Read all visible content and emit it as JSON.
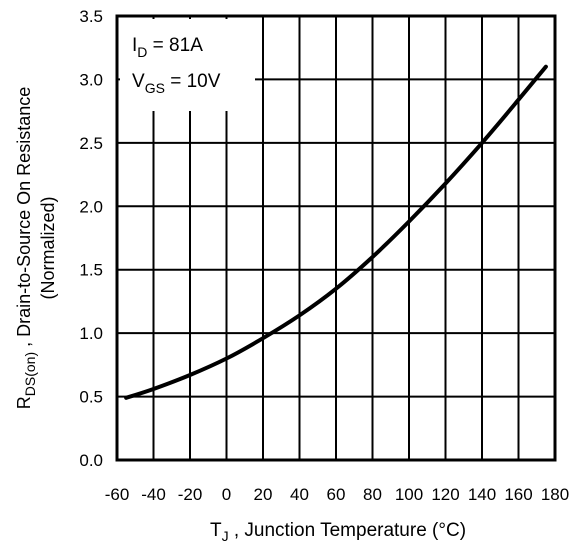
{
  "chart_data": {
    "type": "line",
    "title": "",
    "xlabel": "T",
    "xlabel_sub": "J",
    "xlabel_rest": " , Junction Temperature (°C)",
    "ylabel_main": "R",
    "ylabel_sub": "DS(on)",
    "ylabel_rest": " , Drain-to-Source On Resistance",
    "ylabel_line2": "(Normalized)",
    "xlim": [
      -60,
      180
    ],
    "ylim": [
      0.0,
      3.5
    ],
    "xticks": [
      "-60",
      "-40",
      "-20",
      "0",
      "20",
      "40",
      "60",
      "80",
      "100",
      "120",
      "140",
      "160",
      "180"
    ],
    "yticks": [
      "0.0",
      "0.5",
      "1.0",
      "1.5",
      "2.0",
      "2.5",
      "3.0",
      "3.5"
    ],
    "grid": true,
    "annotations": [
      {
        "main": "I",
        "sub": "D",
        "rest": " = 81A"
      },
      {
        "main": "V",
        "sub": "GS",
        "rest": " = 10V"
      }
    ],
    "series": [
      {
        "x": [
          -55,
          -40,
          -20,
          0,
          20,
          40,
          60,
          80,
          100,
          120,
          140,
          160,
          175
        ],
        "y": [
          0.49,
          0.56,
          0.67,
          0.8,
          0.96,
          1.14,
          1.35,
          1.6,
          1.88,
          2.18,
          2.5,
          2.84,
          3.1
        ]
      }
    ]
  }
}
